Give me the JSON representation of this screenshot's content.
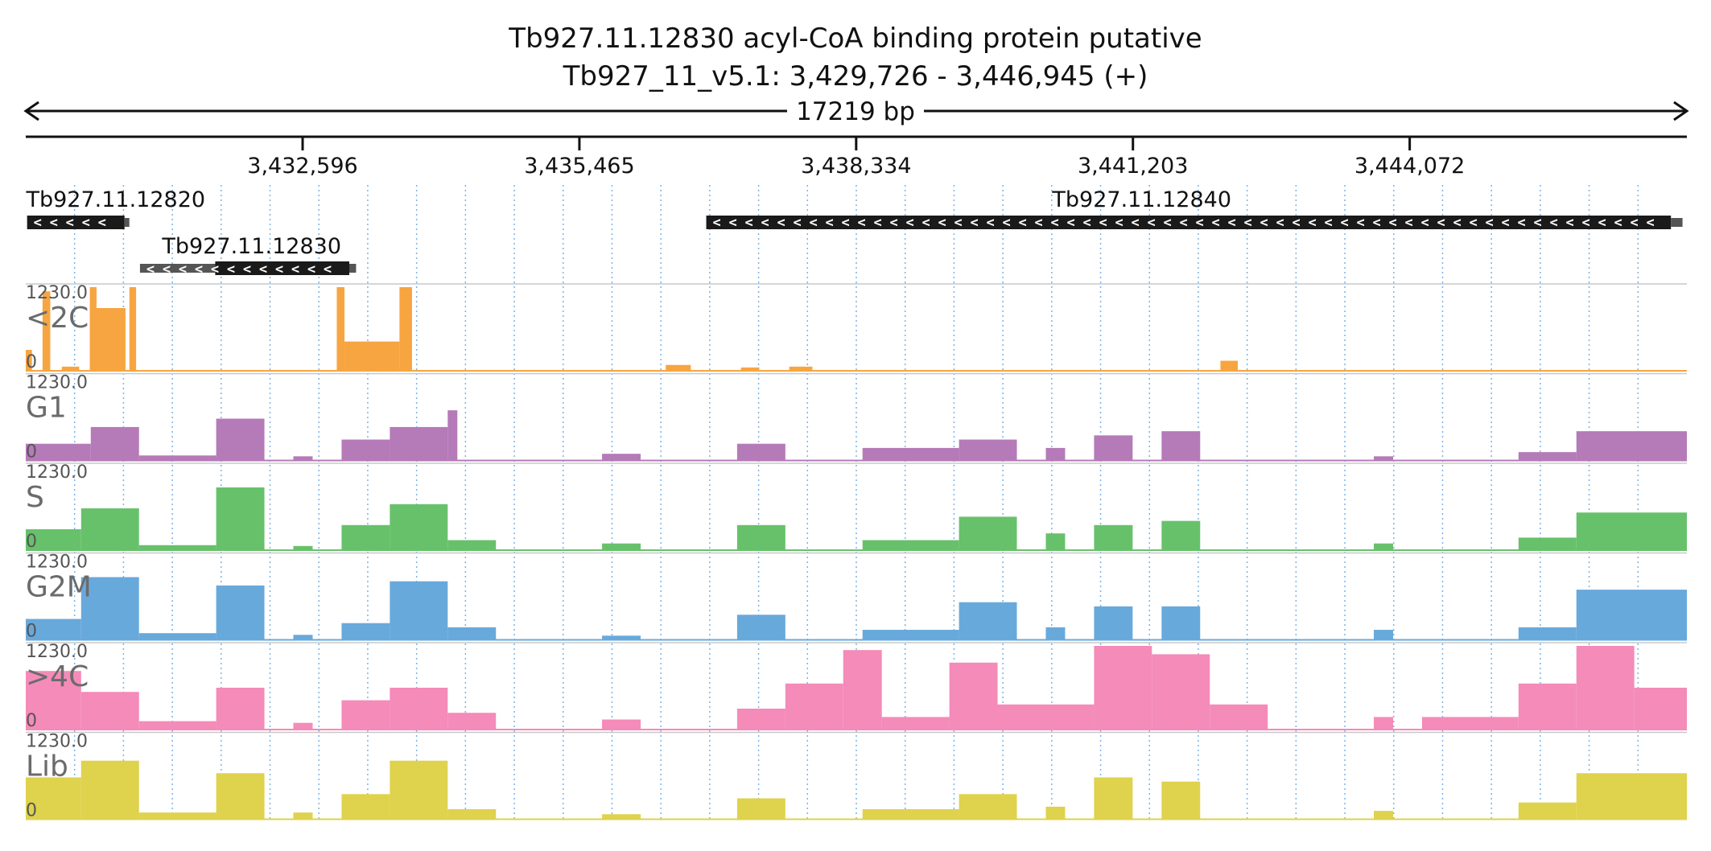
{
  "header": {
    "title_line1": "Tb927.11.12830  acyl-CoA binding protein  putative",
    "title_line2": "Tb927_11_v5.1: 3,429,726 - 3,446,945 (+)",
    "span_label": "17219 bp"
  },
  "chart_data": {
    "type": "area",
    "region": {
      "chrom": "Tb927_11_v5.1",
      "start": 3429726,
      "end": 3446945,
      "strand": "+"
    },
    "x_ticks": [
      {
        "pos": 3432596,
        "label": "3,432,596"
      },
      {
        "pos": 3435465,
        "label": "3,435,465"
      },
      {
        "pos": 3438334,
        "label": "3,438,334"
      },
      {
        "pos": 3441203,
        "label": "3,441,203"
      },
      {
        "pos": 3444072,
        "label": "3,444,072"
      }
    ],
    "genes": [
      {
        "name": "Tb927.11.12820",
        "label_pos": 3429730,
        "start": 3429740,
        "end": 3430750,
        "utr_end": 3430800,
        "utr_start": 3429740,
        "strand": "-"
      },
      {
        "name": "Tb927.11.12830",
        "label_pos": 3431640,
        "start": 3430910,
        "end": 3433150,
        "cds_start": 3431690,
        "cds_end": 3433080,
        "strand": "-"
      },
      {
        "name": "Tb927.11.12840",
        "label_pos": 3440700,
        "start": 3436780,
        "end": 3446780,
        "utr_end": 3446900,
        "strand": "-"
      }
    ],
    "tracks": [
      {
        "name": "<2C",
        "color": "#f7a541",
        "max_label": "1230.0",
        "zero_label": "0",
        "segments": [
          {
            "s": 3429726,
            "e": 3429790,
            "h": 0.25
          },
          {
            "s": 3429900,
            "e": 3429980,
            "h": 0.95
          },
          {
            "s": 3430100,
            "e": 3430280,
            "h": 0.05
          },
          {
            "s": 3430390,
            "e": 3430460,
            "h": 1.0
          },
          {
            "s": 3430460,
            "e": 3430760,
            "h": 0.75
          },
          {
            "s": 3430800,
            "e": 3430870,
            "h": 1.0
          },
          {
            "s": 3432950,
            "e": 3433030,
            "h": 1.0
          },
          {
            "s": 3433030,
            "e": 3433600,
            "h": 0.35
          },
          {
            "s": 3433600,
            "e": 3433730,
            "h": 1.0
          },
          {
            "s": 3436360,
            "e": 3436620,
            "h": 0.07
          },
          {
            "s": 3437140,
            "e": 3437330,
            "h": 0.04
          },
          {
            "s": 3437640,
            "e": 3437880,
            "h": 0.05
          },
          {
            "s": 3442110,
            "e": 3442290,
            "h": 0.12
          }
        ]
      },
      {
        "name": "G1",
        "color": "#b57ab8",
        "max_label": "1230.0",
        "zero_label": "0",
        "segments": [
          {
            "s": 3429726,
            "e": 3430400,
            "h": 0.2
          },
          {
            "s": 3430400,
            "e": 3430900,
            "h": 0.4
          },
          {
            "s": 3430900,
            "e": 3431700,
            "h": 0.06
          },
          {
            "s": 3431700,
            "e": 3432200,
            "h": 0.5
          },
          {
            "s": 3432500,
            "e": 3432700,
            "h": 0.05
          },
          {
            "s": 3433000,
            "e": 3433500,
            "h": 0.25
          },
          {
            "s": 3433500,
            "e": 3434100,
            "h": 0.4
          },
          {
            "s": 3434100,
            "e": 3434200,
            "h": 0.6
          },
          {
            "s": 3435700,
            "e": 3436100,
            "h": 0.08
          },
          {
            "s": 3437100,
            "e": 3437600,
            "h": 0.2
          },
          {
            "s": 3438400,
            "e": 3439400,
            "h": 0.15
          },
          {
            "s": 3439400,
            "e": 3440000,
            "h": 0.25
          },
          {
            "s": 3440300,
            "e": 3440500,
            "h": 0.15
          },
          {
            "s": 3440800,
            "e": 3441200,
            "h": 0.3
          },
          {
            "s": 3441500,
            "e": 3441900,
            "h": 0.35
          },
          {
            "s": 3443700,
            "e": 3443900,
            "h": 0.05
          },
          {
            "s": 3445200,
            "e": 3445800,
            "h": 0.1
          },
          {
            "s": 3445800,
            "e": 3446945,
            "h": 0.35
          }
        ]
      },
      {
        "name": "S",
        "color": "#67c16b",
        "max_label": "1230.0",
        "zero_label": "0",
        "segments": [
          {
            "s": 3429726,
            "e": 3430300,
            "h": 0.25
          },
          {
            "s": 3430300,
            "e": 3430900,
            "h": 0.5
          },
          {
            "s": 3430900,
            "e": 3431700,
            "h": 0.06
          },
          {
            "s": 3431700,
            "e": 3432200,
            "h": 0.75
          },
          {
            "s": 3432500,
            "e": 3432700,
            "h": 0.05
          },
          {
            "s": 3433000,
            "e": 3433500,
            "h": 0.3
          },
          {
            "s": 3433500,
            "e": 3434100,
            "h": 0.55
          },
          {
            "s": 3434100,
            "e": 3434600,
            "h": 0.12
          },
          {
            "s": 3435700,
            "e": 3436100,
            "h": 0.08
          },
          {
            "s": 3437100,
            "e": 3437600,
            "h": 0.3
          },
          {
            "s": 3438400,
            "e": 3439400,
            "h": 0.12
          },
          {
            "s": 3439400,
            "e": 3440000,
            "h": 0.4
          },
          {
            "s": 3440300,
            "e": 3440500,
            "h": 0.2
          },
          {
            "s": 3440800,
            "e": 3441200,
            "h": 0.3
          },
          {
            "s": 3441500,
            "e": 3441900,
            "h": 0.35
          },
          {
            "s": 3443700,
            "e": 3443900,
            "h": 0.08
          },
          {
            "s": 3445200,
            "e": 3445800,
            "h": 0.15
          },
          {
            "s": 3445800,
            "e": 3446945,
            "h": 0.45
          }
        ]
      },
      {
        "name": "G2M",
        "color": "#68a9dc",
        "max_label": "1230.0",
        "zero_label": "0",
        "segments": [
          {
            "s": 3429726,
            "e": 3430300,
            "h": 0.25
          },
          {
            "s": 3430300,
            "e": 3430900,
            "h": 0.75
          },
          {
            "s": 3430900,
            "e": 3431700,
            "h": 0.08
          },
          {
            "s": 3431700,
            "e": 3432200,
            "h": 0.65
          },
          {
            "s": 3432500,
            "e": 3432700,
            "h": 0.06
          },
          {
            "s": 3433000,
            "e": 3433500,
            "h": 0.2
          },
          {
            "s": 3433500,
            "e": 3434100,
            "h": 0.7
          },
          {
            "s": 3434100,
            "e": 3434600,
            "h": 0.15
          },
          {
            "s": 3435700,
            "e": 3436100,
            "h": 0.05
          },
          {
            "s": 3437100,
            "e": 3437600,
            "h": 0.3
          },
          {
            "s": 3438400,
            "e": 3439400,
            "h": 0.12
          },
          {
            "s": 3439400,
            "e": 3440000,
            "h": 0.45
          },
          {
            "s": 3440300,
            "e": 3440500,
            "h": 0.15
          },
          {
            "s": 3440800,
            "e": 3441200,
            "h": 0.4
          },
          {
            "s": 3441500,
            "e": 3441900,
            "h": 0.4
          },
          {
            "s": 3443700,
            "e": 3443900,
            "h": 0.12
          },
          {
            "s": 3445200,
            "e": 3445800,
            "h": 0.15
          },
          {
            "s": 3445800,
            "e": 3446945,
            "h": 0.6
          }
        ]
      },
      {
        "name": ">4C",
        "color": "#f48bb9",
        "max_label": "1230.0",
        "zero_label": "0",
        "segments": [
          {
            "s": 3429726,
            "e": 3430300,
            "h": 0.7
          },
          {
            "s": 3430300,
            "e": 3430900,
            "h": 0.45
          },
          {
            "s": 3430900,
            "e": 3431700,
            "h": 0.1
          },
          {
            "s": 3431700,
            "e": 3432200,
            "h": 0.5
          },
          {
            "s": 3432500,
            "e": 3432700,
            "h": 0.08
          },
          {
            "s": 3433000,
            "e": 3433500,
            "h": 0.35
          },
          {
            "s": 3433500,
            "e": 3434100,
            "h": 0.5
          },
          {
            "s": 3434100,
            "e": 3434600,
            "h": 0.2
          },
          {
            "s": 3435700,
            "e": 3436100,
            "h": 0.12
          },
          {
            "s": 3437100,
            "e": 3437600,
            "h": 0.25
          },
          {
            "s": 3437600,
            "e": 3438200,
            "h": 0.55
          },
          {
            "s": 3438200,
            "e": 3438600,
            "h": 0.95
          },
          {
            "s": 3438600,
            "e": 3439300,
            "h": 0.15
          },
          {
            "s": 3439300,
            "e": 3439800,
            "h": 0.8
          },
          {
            "s": 3439800,
            "e": 3440800,
            "h": 0.3
          },
          {
            "s": 3440800,
            "e": 3441400,
            "h": 1.0
          },
          {
            "s": 3441400,
            "e": 3442000,
            "h": 0.9
          },
          {
            "s": 3442000,
            "e": 3442600,
            "h": 0.3
          },
          {
            "s": 3443700,
            "e": 3443900,
            "h": 0.15
          },
          {
            "s": 3444200,
            "e": 3445200,
            "h": 0.15
          },
          {
            "s": 3445200,
            "e": 3445800,
            "h": 0.55
          },
          {
            "s": 3445800,
            "e": 3446400,
            "h": 1.0
          },
          {
            "s": 3446400,
            "e": 3446945,
            "h": 0.5
          }
        ]
      },
      {
        "name": "Lib",
        "color": "#dfd24d",
        "max_label": "1230.0",
        "zero_label": "0",
        "segments": [
          {
            "s": 3429726,
            "e": 3430300,
            "h": 0.5
          },
          {
            "s": 3430300,
            "e": 3430900,
            "h": 0.7
          },
          {
            "s": 3430900,
            "e": 3431700,
            "h": 0.08
          },
          {
            "s": 3431700,
            "e": 3432200,
            "h": 0.55
          },
          {
            "s": 3432500,
            "e": 3432700,
            "h": 0.08
          },
          {
            "s": 3433000,
            "e": 3433500,
            "h": 0.3
          },
          {
            "s": 3433500,
            "e": 3434100,
            "h": 0.7
          },
          {
            "s": 3434100,
            "e": 3434600,
            "h": 0.12
          },
          {
            "s": 3435700,
            "e": 3436100,
            "h": 0.06
          },
          {
            "s": 3437100,
            "e": 3437600,
            "h": 0.25
          },
          {
            "s": 3438400,
            "e": 3439400,
            "h": 0.12
          },
          {
            "s": 3439400,
            "e": 3440000,
            "h": 0.3
          },
          {
            "s": 3440300,
            "e": 3440500,
            "h": 0.15
          },
          {
            "s": 3440800,
            "e": 3441200,
            "h": 0.5
          },
          {
            "s": 3441500,
            "e": 3441900,
            "h": 0.45
          },
          {
            "s": 3443700,
            "e": 3443900,
            "h": 0.1
          },
          {
            "s": 3445200,
            "e": 3445800,
            "h": 0.2
          },
          {
            "s": 3445800,
            "e": 3446945,
            "h": 0.55
          }
        ]
      }
    ]
  }
}
